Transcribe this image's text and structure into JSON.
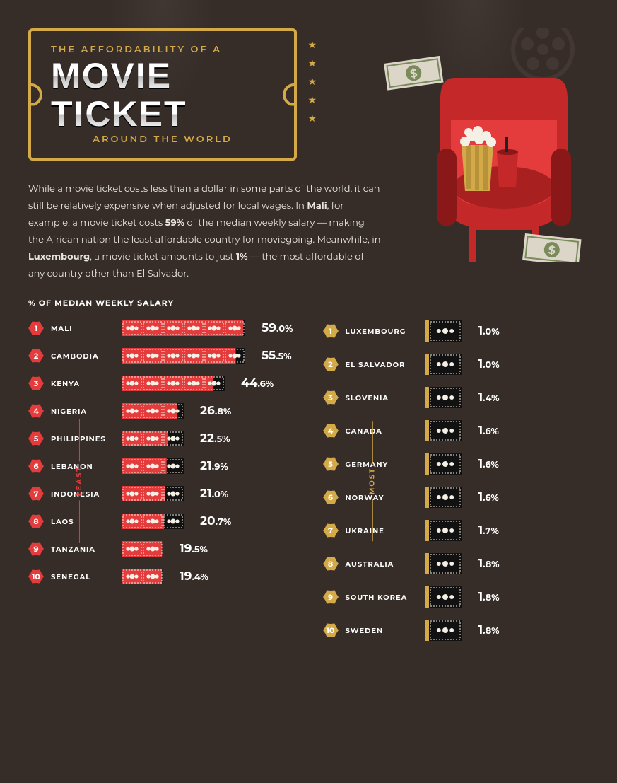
{
  "colors": {
    "bg": "#362c28",
    "gold": "#d4a948",
    "red": "#e43c3c",
    "dark": "#111111",
    "white": "#ffffff",
    "text": "#e8e4e0"
  },
  "ticket": {
    "pre": "THE AFFORDABILITY OF A",
    "line1": "MOVIE",
    "line2": "TICKET",
    "sub": "AROUND THE WORLD"
  },
  "description": "While a movie ticket costs less than a dollar in some parts of the world, it can still be relatively expensive when adjusted for local wages. In <b>Mali</b>, for example, a movie ticket costs <b>59%</b> of the median weekly salary — making the African nation the least affordable country for moviegoing. Meanwhile, in <b>Luxembourg</b>, a movie ticket amounts to just <b>1%</b> — the most affordable of any country other than El Salvador.",
  "subhead": "% OF MEDIAN WEEKLY SALARY",
  "max_value": 59.0,
  "bill_unit": 10,
  "least": {
    "label": "LEAST",
    "badge_color": "#e43c3c",
    "bill_color": "#e43c3c",
    "rows": [
      {
        "rank": 1,
        "country": "MALI",
        "value": 59.0
      },
      {
        "rank": 2,
        "country": "CAMBODIA",
        "value": 55.5
      },
      {
        "rank": 3,
        "country": "KENYA",
        "value": 44.6
      },
      {
        "rank": 4,
        "country": "NIGERIA",
        "value": 26.8
      },
      {
        "rank": 5,
        "country": "PHILIPPINES",
        "value": 22.5
      },
      {
        "rank": 6,
        "country": "LEBANON",
        "value": 21.9
      },
      {
        "rank": 7,
        "country": "INDONESIA",
        "value": 21.0
      },
      {
        "rank": 8,
        "country": "LAOS",
        "value": 20.7
      },
      {
        "rank": 9,
        "country": "TANZANIA",
        "value": 19.5
      },
      {
        "rank": 10,
        "country": "SENEGAL",
        "value": 19.4
      }
    ]
  },
  "most": {
    "label": "MOST",
    "badge_color": "#d4a948",
    "bill_color": "#111111",
    "rows": [
      {
        "rank": 1,
        "country": "LUXEMBOURG",
        "value": 1.0
      },
      {
        "rank": 2,
        "country": "EL SALVADOR",
        "value": 1.0
      },
      {
        "rank": 3,
        "country": "SLOVENIA",
        "value": 1.4
      },
      {
        "rank": 4,
        "country": "CANADA",
        "value": 1.6
      },
      {
        "rank": 5,
        "country": "GERMANY",
        "value": 1.6
      },
      {
        "rank": 6,
        "country": "NORWAY",
        "value": 1.6
      },
      {
        "rank": 7,
        "country": "UKRAINE",
        "value": 1.7
      },
      {
        "rank": 8,
        "country": "AUSTRALIA",
        "value": 1.8
      },
      {
        "rank": 9,
        "country": "SOUTH KOREA",
        "value": 1.8
      },
      {
        "rank": 10,
        "country": "SWEDEN",
        "value": 1.8
      }
    ]
  }
}
